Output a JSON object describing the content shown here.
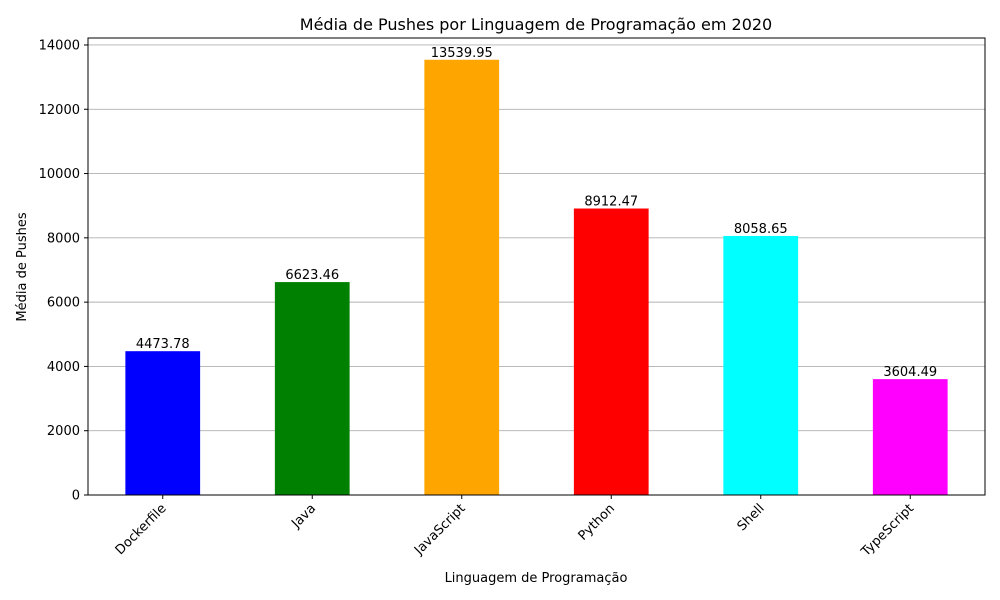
{
  "chart_data": {
    "type": "bar",
    "title": "Média de Pushes por Linguagem de Programação em 2020",
    "xlabel": "Linguagem de Programação",
    "ylabel": "Média de Pushes",
    "categories": [
      "Dockerfile",
      "Java",
      "JavaScript",
      "Python",
      "Shell",
      "TypeScript"
    ],
    "values": [
      4473.78,
      6623.46,
      13539.95,
      8912.47,
      8058.65,
      3604.49
    ],
    "value_labels": [
      "4473.78",
      "6623.46",
      "13539.95",
      "8912.47",
      "8058.65",
      "3604.49"
    ],
    "colors": [
      "#0000ff",
      "#008000",
      "#ffa500",
      "#ff0000",
      "#00ffff",
      "#ff00ff"
    ],
    "ylim": [
      0,
      14216.95
    ],
    "yticks": [
      0,
      2000,
      4000,
      6000,
      8000,
      10000,
      12000,
      14000
    ],
    "ytick_labels": [
      "0",
      "2000",
      "4000",
      "6000",
      "8000",
      "10000",
      "12000",
      "14000"
    ],
    "grid": "y",
    "legend": "none"
  }
}
